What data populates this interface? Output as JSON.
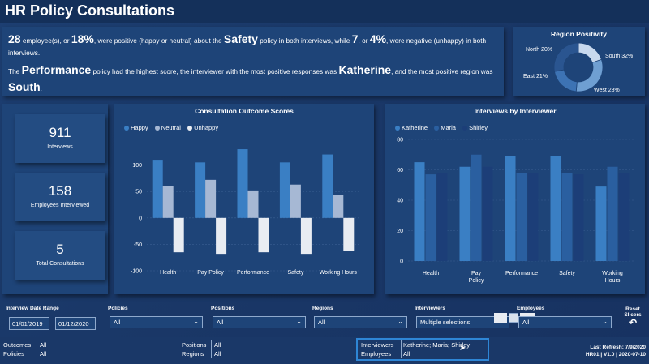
{
  "title": "HR Policy Consultations",
  "summary": {
    "line1": {
      "count": "28",
      "t1": " employee(s), or ",
      "pct_pos": "18%",
      "t2": ", were positive (happy or neutral) about the ",
      "policy": "Safety",
      "t3": " policy in both interviews, while ",
      "neg_count": "7",
      "t4": ", or ",
      "pct_neg": "4%",
      "t5": ", were negative (unhappy) in both interviews."
    },
    "line2": {
      "t1": "The ",
      "policy": "Performance",
      "t2": " policy had the highest score, the interviewer with the most positive responses was ",
      "interviewer": "Katherine",
      "t3": ", and the most positive region was ",
      "region": "South",
      "t4": "."
    }
  },
  "kpis": [
    {
      "value": "911",
      "label": "Interviews"
    },
    {
      "value": "158",
      "label": "Employees Interviewed"
    },
    {
      "value": "5",
      "label": "Total Consultations"
    }
  ],
  "region_chart": {
    "title": "Region Positivity",
    "labels": [
      "North 20%",
      "South 32%",
      "East 21%",
      "West 28%"
    ]
  },
  "chart_data": [
    {
      "type": "bar",
      "title": "Consultation Outcome Scores",
      "categories": [
        "Health",
        "Pay Policy",
        "Performance",
        "Safety",
        "Working Hours"
      ],
      "series": [
        {
          "name": "Happy",
          "values": [
            110,
            105,
            130,
            105,
            120
          ]
        },
        {
          "name": "Neutral",
          "values": [
            60,
            72,
            52,
            63,
            43
          ]
        },
        {
          "name": "Unhappy",
          "values": [
            -65,
            -68,
            -65,
            -68,
            -63
          ]
        }
      ],
      "yticks": [
        "100",
        "50",
        "0",
        "-50",
        "-100"
      ],
      "ylim": [
        -100,
        150
      ],
      "colors": [
        "#3a7fc4",
        "#a6b8d4",
        "#e8ecf2"
      ]
    },
    {
      "type": "bar",
      "title": "Interviews by Interviewer",
      "categories": [
        "Health",
        "Pay Policy",
        "Performance",
        "Safety",
        "Working Hours"
      ],
      "series": [
        {
          "name": "Katherine",
          "values": [
            65,
            62,
            69,
            69,
            49
          ]
        },
        {
          "name": "Maria",
          "values": [
            57,
            70,
            58,
            58,
            62
          ]
        },
        {
          "name": "Shirley",
          "values": [
            58,
            62,
            58,
            57,
            58
          ]
        }
      ],
      "yticks": [
        "80",
        "60",
        "40",
        "20",
        "0"
      ],
      "ylim": [
        0,
        80
      ],
      "colors": [
        "#3a7fc4",
        "#2a5fa0",
        "#1c3e78"
      ]
    },
    {
      "type": "pie",
      "title": "Region Positivity",
      "categories": [
        "North",
        "South",
        "East",
        "West"
      ],
      "values": [
        20,
        32,
        21,
        28
      ],
      "colors": [
        "#c8d9ee",
        "#6f9fd2",
        "#3d73b4",
        "#2a5590"
      ]
    }
  ],
  "slicers": {
    "date_label": "Interview Date Range",
    "date_from": "01/01/2019",
    "date_to": "01/12/2020",
    "policies_label": "Policies",
    "policies_value": "All",
    "positions_label": "Positions",
    "positions_value": "All",
    "regions_label": "Regions",
    "regions_value": "All",
    "interviewers_label": "Interviewers",
    "interviewers_value": "Multiple selections",
    "employees_label": "Employees",
    "employees_value": "All",
    "reset_label": "Reset Slicers"
  },
  "footer": {
    "outcomes_k": "Outcomes",
    "outcomes_v": "All",
    "policies_k": "Policies",
    "policies_v": "All",
    "positions_k": "Positions",
    "positions_v": "All",
    "regions_k": "Regions",
    "regions_v": "All",
    "interviewers_k": "Interviewers",
    "interviewers_v": "Katherine; Maria; Shirley",
    "employees_k": "Employees",
    "employees_v": "All",
    "refresh": "Last Refresh: 7/9/2020",
    "version": "HR01 | V1.0 | 2020-07-10"
  }
}
